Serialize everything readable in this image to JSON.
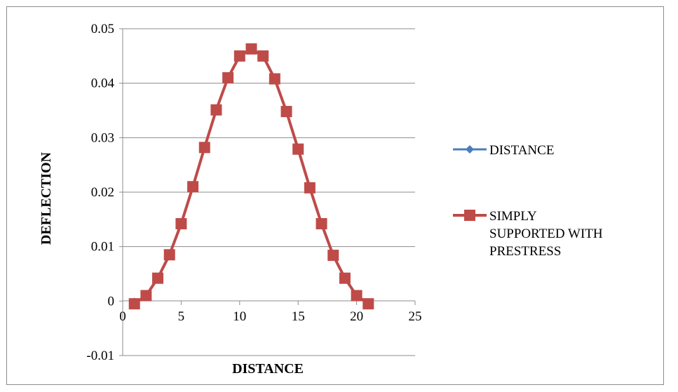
{
  "chart_data": {
    "type": "line",
    "xlabel": "DISTANCE",
    "ylabel": "DEFLECTION",
    "xlim": [
      0,
      25
    ],
    "ylim": [
      -0.01,
      0.05
    ],
    "x_ticks": [
      "0",
      "5",
      "10",
      "15",
      "20",
      "25"
    ],
    "y_ticks": [
      "-0.01",
      "0",
      "0.01",
      "0.02",
      "0.03",
      "0.04",
      "0.05"
    ],
    "grid": "horizontal major gridlines",
    "legend_position": "right",
    "series": [
      {
        "name": "DISTANCE",
        "color": "#4a7ebb",
        "marker": "diamond",
        "points": [
          [
            1,
            0
          ]
        ]
      },
      {
        "name": "SIMPLY SUPPORTED WITH PRESTRESS",
        "legend_lines": [
          "SIMPLY",
          "SUPPORTED WITH",
          "PRESTRESS"
        ],
        "color": "#be4b48",
        "marker": "square",
        "points": [
          [
            1,
            -0.0005
          ],
          [
            2,
            0.001
          ],
          [
            3,
            0.0042
          ],
          [
            4,
            0.0085
          ],
          [
            5,
            0.0142
          ],
          [
            6,
            0.021
          ],
          [
            7,
            0.0282
          ],
          [
            8,
            0.0351
          ],
          [
            9,
            0.041
          ],
          [
            10,
            0.045
          ],
          [
            11,
            0.0463
          ],
          [
            12,
            0.045
          ],
          [
            13,
            0.0408
          ],
          [
            14,
            0.0348
          ],
          [
            15,
            0.0279
          ],
          [
            16,
            0.0208
          ],
          [
            17,
            0.0142
          ],
          [
            18,
            0.0084
          ],
          [
            19,
            0.0042
          ],
          [
            20,
            0.001
          ],
          [
            21,
            -0.0005
          ]
        ]
      }
    ]
  }
}
